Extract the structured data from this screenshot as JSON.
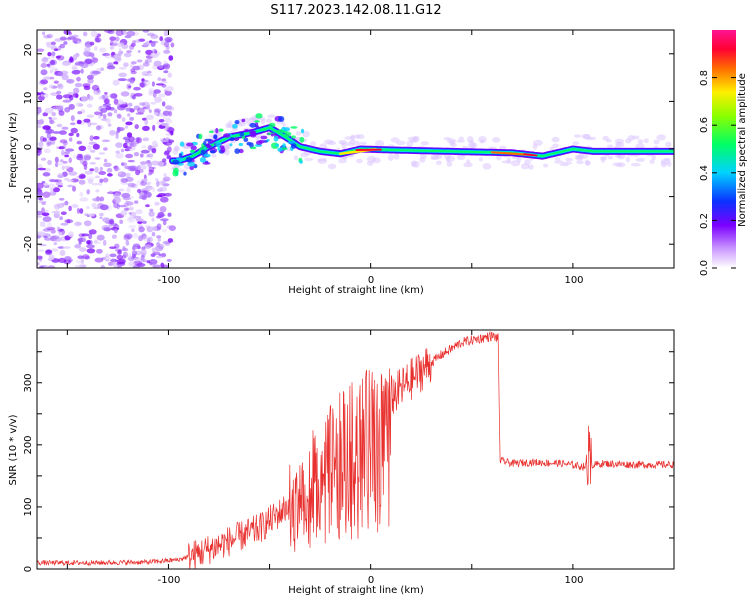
{
  "title": "S117.2023.142.08.11.G12",
  "chart_data": [
    {
      "type": "heatmap",
      "xlabel": "Height of straight line (km)",
      "ylabel": "Frequency (Hz)",
      "xlim": [
        -165,
        150
      ],
      "ylim": [
        -25,
        25
      ],
      "x_ticks": [
        "-100",
        "0",
        "100"
      ],
      "y_ticks": [
        "20",
        "10",
        "0",
        "-10",
        "-20"
      ],
      "colorbar": {
        "label": "Normalized spectral amplitude",
        "range": [
          0,
          1
        ],
        "ticks": [
          "0.0",
          "0.2",
          "0.4",
          "0.6",
          "0.8"
        ]
      },
      "ridge": [
        {
          "x": -95,
          "f": -2.5
        },
        {
          "x": -88,
          "f": -1.5
        },
        {
          "x": -80,
          "f": 0.5
        },
        {
          "x": -70,
          "f": 2.5
        },
        {
          "x": -58,
          "f": 3.5
        },
        {
          "x": -50,
          "f": 4.5
        },
        {
          "x": -42,
          "f": 2.5
        },
        {
          "x": -35,
          "f": 0.5
        },
        {
          "x": -25,
          "f": -0.5
        },
        {
          "x": -15,
          "f": -1.0
        },
        {
          "x": -5,
          "f": 0.0
        },
        {
          "x": 10,
          "f": -0.2
        },
        {
          "x": 40,
          "f": -0.5
        },
        {
          "x": 70,
          "f": -0.8
        },
        {
          "x": 85,
          "f": -1.5
        },
        {
          "x": 100,
          "f": 0.0
        },
        {
          "x": 110,
          "f": -0.5
        },
        {
          "x": 150,
          "f": -0.5
        }
      ]
    },
    {
      "type": "line",
      "xlabel": "Height of straight line (km)",
      "ylabel": "SNR (10 * v/v)",
      "xlim": [
        -165,
        150
      ],
      "ylim": [
        0,
        385
      ],
      "x_ticks": [
        "-100",
        "0",
        "100"
      ],
      "y_ticks": [
        "0",
        "100",
        "200",
        "300"
      ],
      "series": [
        {
          "color": "#e8312f",
          "points": [
            [
              -165,
              10
            ],
            [
              -140,
              10
            ],
            [
              -110,
              11
            ],
            [
              -95,
              15
            ],
            [
              -85,
              25
            ],
            [
              -70,
              45
            ],
            [
              -55,
              65
            ],
            [
              -45,
              90
            ],
            [
              -35,
              120
            ],
            [
              -25,
              175
            ],
            [
              -15,
              215
            ],
            [
              -5,
              245
            ],
            [
              5,
              265
            ],
            [
              15,
              290
            ],
            [
              25,
              320
            ],
            [
              35,
              345
            ],
            [
              45,
              365
            ],
            [
              55,
              372
            ],
            [
              60,
              375
            ],
            [
              63,
              372
            ],
            [
              64,
              175
            ],
            [
              70,
              170
            ],
            [
              80,
              172
            ],
            [
              95,
              170
            ],
            [
              105,
              165
            ],
            [
              115,
              170
            ],
            [
              130,
              168
            ],
            [
              150,
              168
            ]
          ]
        }
      ]
    }
  ]
}
